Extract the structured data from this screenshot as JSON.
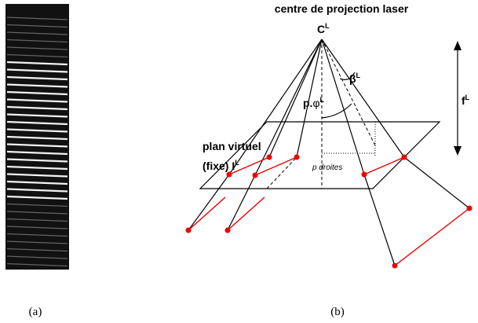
{
  "header": {
    "title": "centre de projection laser"
  },
  "labels": {
    "apex": {
      "text": "C",
      "sup": "L"
    },
    "beta": {
      "text": "β",
      "sup": "L"
    },
    "focal": {
      "text": "f",
      "sup": "L"
    },
    "phi": {
      "text": "p.",
      "symbol": "φ",
      "sup": "L"
    },
    "plane_line1": "plan virtuel",
    "plane_line2": {
      "text": "(fixe)  I",
      "sup": "L"
    },
    "lines": "p droites"
  },
  "captions": [
    "(a)",
    "(b)"
  ]
}
